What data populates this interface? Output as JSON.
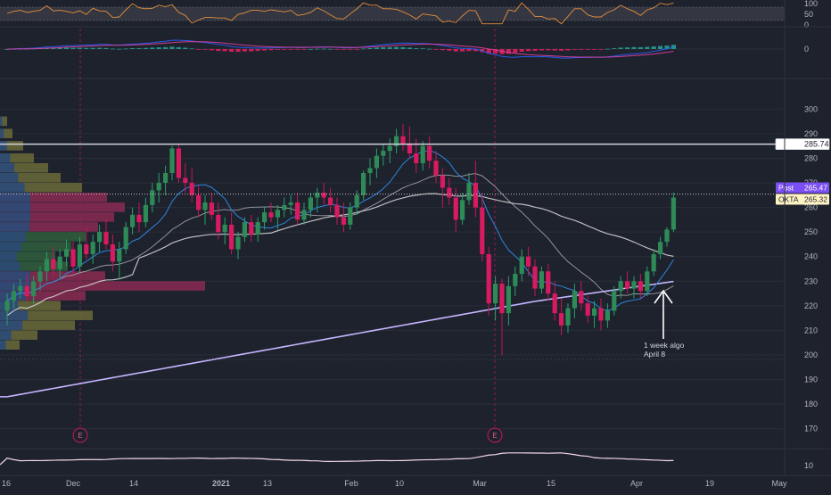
{
  "chart_data": {
    "type": "candlestick",
    "symbol": "OKTA",
    "x_ticks": [
      "16",
      "Dec",
      "14",
      "2021",
      "13",
      "Feb",
      "10",
      "Mar",
      "15",
      "Apr",
      "19",
      "May"
    ],
    "y_ticks": [
      170,
      180,
      190,
      200,
      210,
      220,
      230,
      240,
      250,
      260,
      270,
      280,
      290,
      300
    ],
    "ylim": [
      163,
      311
    ],
    "rsi_ticks": [
      "100",
      "50",
      "0"
    ],
    "macd_tick": "0",
    "atr_tick": "10",
    "horizontal_line": {
      "value": 285.74,
      "label": "285.74"
    },
    "price_labels": [
      {
        "name": "Post",
        "value": "265.47",
        "color": "#7b4ff2",
        "text_color": "#ffffff"
      },
      {
        "name": "OKTA",
        "value": "265.32",
        "color": "#fff3c4",
        "text_color": "#1e222d"
      }
    ],
    "annotation": {
      "line1": "1 week algo",
      "line2": "April 8"
    },
    "earnings_markers": [
      "E",
      "E"
    ],
    "candles": [
      {
        "x": "Nov 16",
        "o": 218,
        "h": 225,
        "l": 212,
        "c": 222
      },
      {
        "x": "Nov 17",
        "o": 222,
        "h": 229,
        "l": 219,
        "c": 226
      },
      {
        "x": "Nov 18",
        "o": 226,
        "h": 231,
        "l": 223,
        "c": 228
      },
      {
        "x": "Nov 19",
        "o": 228,
        "h": 233,
        "l": 222,
        "c": 224
      },
      {
        "x": "Nov 20",
        "o": 224,
        "h": 232,
        "l": 221,
        "c": 230
      },
      {
        "x": "Nov 23",
        "o": 230,
        "h": 236,
        "l": 226,
        "c": 234
      },
      {
        "x": "Nov 24",
        "o": 234,
        "h": 242,
        "l": 230,
        "c": 239
      },
      {
        "x": "Nov 25",
        "o": 239,
        "h": 244,
        "l": 232,
        "c": 235
      },
      {
        "x": "Nov 27",
        "o": 235,
        "h": 243,
        "l": 231,
        "c": 240
      },
      {
        "x": "Nov 30",
        "o": 240,
        "h": 247,
        "l": 236,
        "c": 243
      },
      {
        "x": "Dec 1",
        "o": 243,
        "h": 246,
        "l": 233,
        "c": 236
      },
      {
        "x": "Dec 2",
        "o": 236,
        "h": 248,
        "l": 233,
        "c": 245
      },
      {
        "x": "Dec 3",
        "o": 245,
        "h": 252,
        "l": 239,
        "c": 241
      },
      {
        "x": "Dec 4",
        "o": 241,
        "h": 249,
        "l": 237,
        "c": 246
      },
      {
        "x": "Dec 7",
        "o": 246,
        "h": 253,
        "l": 242,
        "c": 250
      },
      {
        "x": "Dec 8",
        "o": 250,
        "h": 255,
        "l": 243,
        "c": 245
      },
      {
        "x": "Dec 9",
        "o": 245,
        "h": 249,
        "l": 234,
        "c": 238
      },
      {
        "x": "Dec 10",
        "o": 238,
        "h": 246,
        "l": 231,
        "c": 243
      },
      {
        "x": "Dec 11",
        "o": 243,
        "h": 254,
        "l": 241,
        "c": 252
      },
      {
        "x": "Dec 14",
        "o": 252,
        "h": 260,
        "l": 249,
        "c": 257
      },
      {
        "x": "Dec 15",
        "o": 257,
        "h": 262,
        "l": 250,
        "c": 254
      },
      {
        "x": "Dec 16",
        "o": 254,
        "h": 264,
        "l": 252,
        "c": 261
      },
      {
        "x": "Dec 17",
        "o": 261,
        "h": 270,
        "l": 258,
        "c": 267
      },
      {
        "x": "Dec 18",
        "o": 267,
        "h": 274,
        "l": 262,
        "c": 270
      },
      {
        "x": "Dec 21",
        "o": 270,
        "h": 277,
        "l": 265,
        "c": 274
      },
      {
        "x": "Dec 22",
        "o": 274,
        "h": 285,
        "l": 271,
        "c": 284
      },
      {
        "x": "Dec 23",
        "o": 284,
        "h": 286,
        "l": 270,
        "c": 272
      },
      {
        "x": "Dec 24",
        "o": 272,
        "h": 278,
        "l": 266,
        "c": 270
      },
      {
        "x": "Dec 28",
        "o": 270,
        "h": 276,
        "l": 262,
        "c": 265
      },
      {
        "x": "Dec 29",
        "o": 265,
        "h": 269,
        "l": 256,
        "c": 259
      },
      {
        "x": "Dec 30",
        "o": 259,
        "h": 265,
        "l": 253,
        "c": 262
      },
      {
        "x": "Dec 31",
        "o": 262,
        "h": 266,
        "l": 255,
        "c": 257
      },
      {
        "x": "Jan 4",
        "o": 257,
        "h": 262,
        "l": 247,
        "c": 250
      },
      {
        "x": "Jan 5",
        "o": 250,
        "h": 256,
        "l": 245,
        "c": 253
      },
      {
        "x": "Jan 6",
        "o": 253,
        "h": 258,
        "l": 241,
        "c": 243
      },
      {
        "x": "Jan 7",
        "o": 243,
        "h": 250,
        "l": 239,
        "c": 248
      },
      {
        "x": "Jan 8",
        "o": 248,
        "h": 256,
        "l": 246,
        "c": 254
      },
      {
        "x": "Jan 11",
        "o": 254,
        "h": 257,
        "l": 246,
        "c": 249
      },
      {
        "x": "Jan 12",
        "o": 249,
        "h": 256,
        "l": 246,
        "c": 254
      },
      {
        "x": "Jan 13",
        "o": 254,
        "h": 260,
        "l": 251,
        "c": 258
      },
      {
        "x": "Jan 14",
        "o": 258,
        "h": 262,
        "l": 254,
        "c": 256
      },
      {
        "x": "Jan 15",
        "o": 256,
        "h": 261,
        "l": 251,
        "c": 259
      },
      {
        "x": "Jan 19",
        "o": 259,
        "h": 264,
        "l": 256,
        "c": 261
      },
      {
        "x": "Jan 20",
        "o": 261,
        "h": 265,
        "l": 257,
        "c": 262
      },
      {
        "x": "Jan 21",
        "o": 262,
        "h": 266,
        "l": 253,
        "c": 255
      },
      {
        "x": "Jan 22",
        "o": 255,
        "h": 262,
        "l": 253,
        "c": 259
      },
      {
        "x": "Jan 25",
        "o": 259,
        "h": 266,
        "l": 256,
        "c": 264
      },
      {
        "x": "Jan 26",
        "o": 264,
        "h": 268,
        "l": 258,
        "c": 266
      },
      {
        "x": "Jan 27",
        "o": 266,
        "h": 270,
        "l": 261,
        "c": 264
      },
      {
        "x": "Jan 28",
        "o": 264,
        "h": 268,
        "l": 258,
        "c": 261
      },
      {
        "x": "Jan 29",
        "o": 261,
        "h": 264,
        "l": 253,
        "c": 256
      },
      {
        "x": "Feb 1",
        "o": 256,
        "h": 262,
        "l": 250,
        "c": 253
      },
      {
        "x": "Feb 2",
        "o": 253,
        "h": 262,
        "l": 251,
        "c": 260
      },
      {
        "x": "Feb 3",
        "o": 260,
        "h": 267,
        "l": 257,
        "c": 265
      },
      {
        "x": "Feb 4",
        "o": 265,
        "h": 275,
        "l": 263,
        "c": 274
      },
      {
        "x": "Feb 5",
        "o": 274,
        "h": 280,
        "l": 269,
        "c": 276
      },
      {
        "x": "Feb 8",
        "o": 276,
        "h": 284,
        "l": 272,
        "c": 281
      },
      {
        "x": "Feb 9",
        "o": 281,
        "h": 286,
        "l": 277,
        "c": 283
      },
      {
        "x": "Feb 10",
        "o": 283,
        "h": 288,
        "l": 278,
        "c": 285
      },
      {
        "x": "Feb 11",
        "o": 285,
        "h": 292,
        "l": 282,
        "c": 289
      },
      {
        "x": "Feb 12",
        "o": 289,
        "h": 294,
        "l": 283,
        "c": 286
      },
      {
        "x": "Feb 16",
        "o": 286,
        "h": 293,
        "l": 280,
        "c": 282
      },
      {
        "x": "Feb 17",
        "o": 282,
        "h": 288,
        "l": 274,
        "c": 278
      },
      {
        "x": "Feb 18",
        "o": 278,
        "h": 287,
        "l": 275,
        "c": 285
      },
      {
        "x": "Feb 19",
        "o": 285,
        "h": 289,
        "l": 276,
        "c": 279
      },
      {
        "x": "Feb 22",
        "o": 279,
        "h": 283,
        "l": 270,
        "c": 273
      },
      {
        "x": "Feb 23",
        "o": 273,
        "h": 276,
        "l": 260,
        "c": 268
      },
      {
        "x": "Feb 24",
        "o": 268,
        "h": 272,
        "l": 261,
        "c": 264
      },
      {
        "x": "Feb 25",
        "o": 264,
        "h": 268,
        "l": 250,
        "c": 255
      },
      {
        "x": "Feb 26",
        "o": 255,
        "h": 266,
        "l": 253,
        "c": 263
      },
      {
        "x": "Mar 1",
        "o": 263,
        "h": 274,
        "l": 261,
        "c": 270
      },
      {
        "x": "Mar 2",
        "o": 270,
        "h": 279,
        "l": 256,
        "c": 260
      },
      {
        "x": "Mar 3",
        "o": 260,
        "h": 266,
        "l": 238,
        "c": 241
      },
      {
        "x": "Mar 4",
        "o": 241,
        "h": 244,
        "l": 216,
        "c": 221
      },
      {
        "x": "Mar 5",
        "o": 221,
        "h": 232,
        "l": 214,
        "c": 229
      },
      {
        "x": "Mar 8",
        "o": 229,
        "h": 231,
        "l": 200,
        "c": 217
      },
      {
        "x": "Mar 9",
        "o": 217,
        "h": 232,
        "l": 212,
        "c": 228
      },
      {
        "x": "Mar 10",
        "o": 228,
        "h": 236,
        "l": 224,
        "c": 233
      },
      {
        "x": "Mar 11",
        "o": 233,
        "h": 243,
        "l": 230,
        "c": 240
      },
      {
        "x": "Mar 12",
        "o": 240,
        "h": 244,
        "l": 232,
        "c": 236
      },
      {
        "x": "Mar 15",
        "o": 236,
        "h": 239,
        "l": 224,
        "c": 227
      },
      {
        "x": "Mar 16",
        "o": 227,
        "h": 236,
        "l": 225,
        "c": 234
      },
      {
        "x": "Mar 17",
        "o": 234,
        "h": 237,
        "l": 222,
        "c": 225
      },
      {
        "x": "Mar 18",
        "o": 225,
        "h": 230,
        "l": 214,
        "c": 217
      },
      {
        "x": "Mar 19",
        "o": 217,
        "h": 223,
        "l": 208,
        "c": 212
      },
      {
        "x": "Mar 22",
        "o": 212,
        "h": 221,
        "l": 209,
        "c": 219
      },
      {
        "x": "Mar 23",
        "o": 219,
        "h": 229,
        "l": 215,
        "c": 226
      },
      {
        "x": "Mar 24",
        "o": 226,
        "h": 230,
        "l": 218,
        "c": 221
      },
      {
        "x": "Mar 25",
        "o": 221,
        "h": 224,
        "l": 213,
        "c": 216
      },
      {
        "x": "Mar 26",
        "o": 216,
        "h": 222,
        "l": 211,
        "c": 219
      },
      {
        "x": "Mar 29",
        "o": 219,
        "h": 223,
        "l": 210,
        "c": 214
      },
      {
        "x": "Mar 30",
        "o": 214,
        "h": 221,
        "l": 211,
        "c": 218
      },
      {
        "x": "Mar 31",
        "o": 218,
        "h": 228,
        "l": 216,
        "c": 226
      },
      {
        "x": "Apr 1",
        "o": 226,
        "h": 232,
        "l": 223,
        "c": 230
      },
      {
        "x": "Apr 5",
        "o": 230,
        "h": 234,
        "l": 225,
        "c": 227
      },
      {
        "x": "Apr 6",
        "o": 227,
        "h": 232,
        "l": 223,
        "c": 230
      },
      {
        "x": "Apr 7",
        "o": 230,
        "h": 233,
        "l": 223,
        "c": 226
      },
      {
        "x": "Apr 8",
        "o": 226,
        "h": 236,
        "l": 224,
        "c": 234
      },
      {
        "x": "Apr 9",
        "o": 234,
        "h": 243,
        "l": 232,
        "c": 241
      },
      {
        "x": "Apr 12",
        "o": 241,
        "h": 248,
        "l": 239,
        "c": 246
      },
      {
        "x": "Apr 13",
        "o": 246,
        "h": 252,
        "l": 244,
        "c": 251
      },
      {
        "x": "Apr 14",
        "o": 251,
        "h": 266,
        "l": 250,
        "c": 264
      }
    ]
  }
}
